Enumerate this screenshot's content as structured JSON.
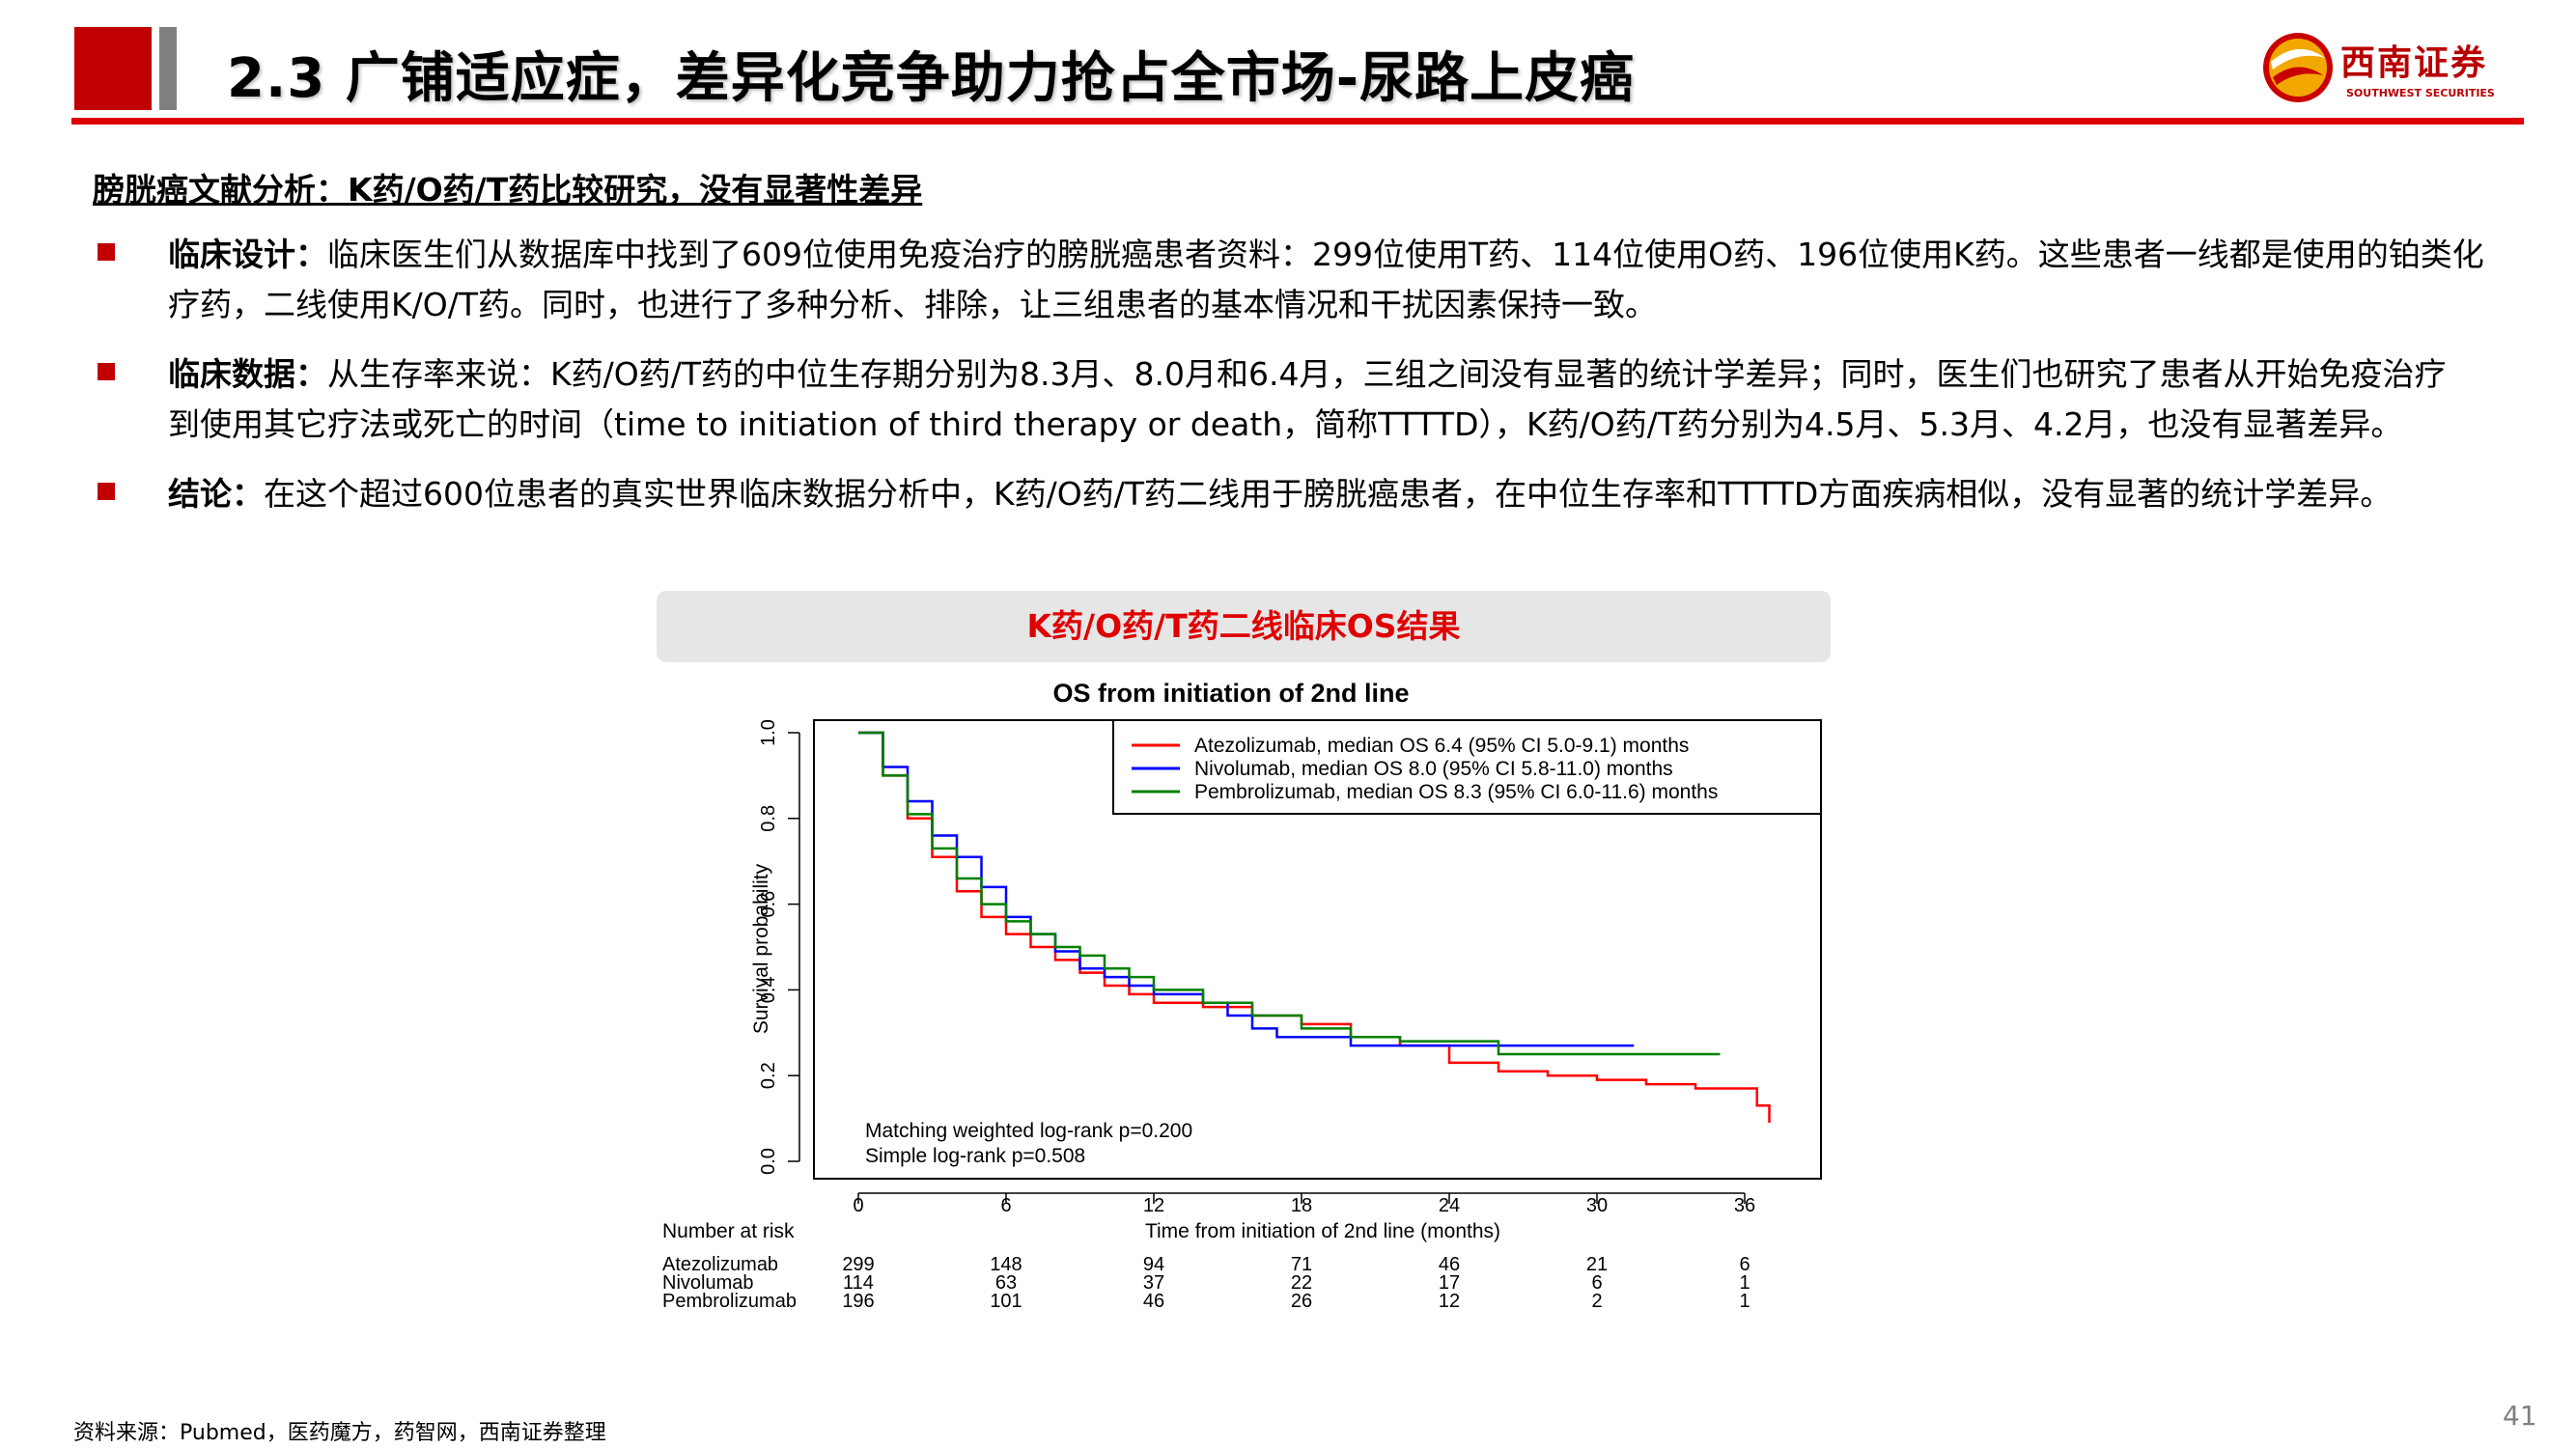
{
  "header": {
    "title": "2.3 广铺适应症，差异化竞争助力抢占全市场-尿路上皮癌",
    "logo_cn": "西南证券",
    "logo_en": "SOUTHWEST SECURITIES"
  },
  "subtitle": "膀胱癌文献分析：K药/O药/T药比较研究，没有显著性差异",
  "bullets": [
    {
      "label": "临床设计：",
      "lines": [
        "临床医生们从数据库中找到了609位使用免疫治疗的膀胱癌患者资料：299位使用T药、114位使用O药、196位使用K药。这些患者一线都是使用的铂类化",
        "疗药，二线使用K/O/T药。同时，也进行了多种分析、排除，让三组患者的基本情况和干扰因素保持一致。"
      ]
    },
    {
      "label": "临床数据：",
      "lines": [
        "从生存率来说：K药/O药/T药的中位生存期分别为8.3月、8.0月和6.4月，三组之间没有显著的统计学差异；同时，医生们也研究了患者从开始免疫治疗",
        "到使用其它疗法或死亡的时间（time to initiation of third therapy or death，简称TTTTD），K药/O药/T药分别为4.5月、5.3月、4.2月，也没有显著差异。"
      ]
    },
    {
      "label": "结论：",
      "lines": [
        "在这个超过600位患者的真实世界临床数据分析中，K药/O药/T药二线用于膀胱癌患者，在中位生存率和TTTTD方面疾病相似，没有显著的统计学差异。"
      ]
    }
  ],
  "chart_banner": "K药/O药/T药二线临床OS结果",
  "chart_data": {
    "type": "line",
    "title": "OS from initiation of 2nd line",
    "xlabel": "Time from initiation of 2nd line (months)",
    "ylabel": "Survival probability",
    "xlim": [
      0,
      38
    ],
    "ylim": [
      0,
      1.0
    ],
    "x_ticks": [
      "0",
      "6",
      "12",
      "18",
      "24",
      "30",
      "36"
    ],
    "y_ticks": [
      "0.0",
      "0.2",
      "0.4",
      "0.6",
      "0.8",
      "1.0"
    ],
    "legend_position": "top-right",
    "series": [
      {
        "name": "Atezolizumab, median OS 6.4 (95% CI 5.0-9.1) months",
        "color": "#ff0000",
        "x": [
          0,
          1,
          2,
          3,
          4,
          5,
          6,
          7,
          8,
          9,
          10,
          11,
          12,
          14,
          16,
          18,
          20,
          22,
          24,
          26,
          28,
          30,
          32,
          34,
          36,
          36.5,
          37
        ],
        "y": [
          1.0,
          0.9,
          0.8,
          0.71,
          0.63,
          0.57,
          0.53,
          0.5,
          0.47,
          0.44,
          0.41,
          0.39,
          0.37,
          0.36,
          0.34,
          0.32,
          0.29,
          0.27,
          0.23,
          0.21,
          0.2,
          0.19,
          0.18,
          0.17,
          0.17,
          0.13,
          0.09
        ]
      },
      {
        "name": "Nivolumab, median OS 8.0 (95% CI 5.8-11.0) months",
        "color": "#0000ff",
        "x": [
          0,
          1,
          2,
          3,
          4,
          5,
          6,
          7,
          8,
          9,
          10,
          11,
          12,
          14,
          15,
          16,
          17,
          18,
          20,
          24,
          28,
          31.5
        ],
        "y": [
          1.0,
          0.92,
          0.84,
          0.76,
          0.71,
          0.64,
          0.57,
          0.53,
          0.49,
          0.45,
          0.43,
          0.41,
          0.39,
          0.37,
          0.34,
          0.31,
          0.29,
          0.29,
          0.27,
          0.27,
          0.27,
          0.27
        ]
      },
      {
        "name": "Pembrolizumab, median OS 8.3 (95% CI 6.0-11.6) months",
        "color": "#008000",
        "x": [
          0,
          1,
          2,
          3,
          4,
          5,
          6,
          7,
          8,
          9,
          10,
          11,
          12,
          14,
          16,
          18,
          20,
          22,
          25,
          26,
          28,
          30,
          32,
          35
        ],
        "y": [
          1.0,
          0.9,
          0.81,
          0.73,
          0.66,
          0.6,
          0.56,
          0.53,
          0.5,
          0.48,
          0.45,
          0.43,
          0.4,
          0.37,
          0.34,
          0.31,
          0.29,
          0.28,
          0.28,
          0.25,
          0.25,
          0.25,
          0.25,
          0.25
        ]
      }
    ],
    "annotations": [
      "Matching weighted log-rank p=0.200",
      "Simple log-rank p=0.508"
    ],
    "risk_table": {
      "title": "Number at risk",
      "time_points": [
        0,
        6,
        12,
        18,
        24,
        30,
        36
      ],
      "rows": [
        {
          "name": "Atezolizumab",
          "values": [
            "299",
            "148",
            "94",
            "71",
            "46",
            "21",
            "6"
          ]
        },
        {
          "name": "Nivolumab",
          "values": [
            "114",
            "63",
            "37",
            "22",
            "17",
            "6",
            "1"
          ]
        },
        {
          "name": "Pembrolizumab",
          "values": [
            "196",
            "101",
            "46",
            "26",
            "12",
            "2",
            "1"
          ]
        }
      ]
    }
  },
  "footer": {
    "source": "资料来源：Pubmed，医药魔方，药智网，西南证券整理",
    "page_number": "41"
  }
}
